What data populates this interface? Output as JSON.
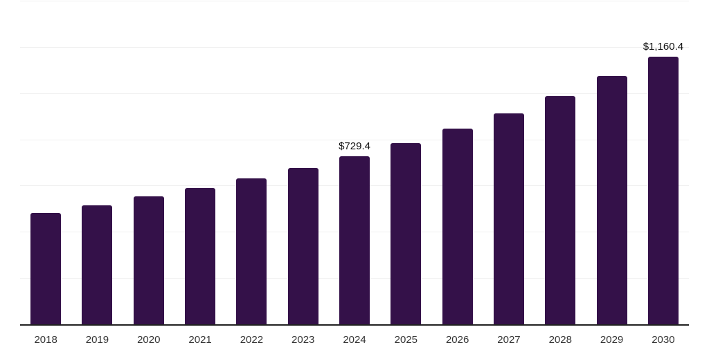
{
  "colors": {
    "background": "#ffffff",
    "bar": "#341149",
    "gridline": "#f0f0f0",
    "axis_line": "#212121",
    "tick_label": "#333333",
    "value_label": "#111111"
  },
  "chart_data": {
    "type": "bar",
    "title": "",
    "xlabel": "",
    "ylabel": "",
    "categories": [
      "2018",
      "2019",
      "2020",
      "2021",
      "2022",
      "2023",
      "2024",
      "2025",
      "2026",
      "2027",
      "2028",
      "2029",
      "2030"
    ],
    "values": [
      484,
      517,
      557,
      593,
      634,
      679,
      729.4,
      788,
      851,
      916,
      991,
      1076,
      1160.4
    ],
    "data_labels": [
      "",
      "",
      "",
      "",
      "",
      "",
      "$729.4",
      "",
      "",
      "",
      "",
      "",
      "$1,160.4"
    ],
    "value_format": "USD",
    "ylim": [
      0,
      1400
    ],
    "gridlines": {
      "orientation": "horizontal",
      "interval": 200,
      "count": 7,
      "y_tick_labels_shown": false
    },
    "legend": "none",
    "bar_color": "#341149"
  }
}
